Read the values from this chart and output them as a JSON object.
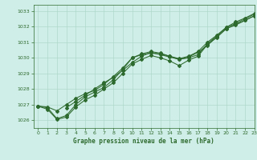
{
  "background_color": "#d0eee8",
  "grid_color": "#b0d8cc",
  "line_color": "#2d6a2d",
  "title": "Graphe pression niveau de la mer (hPa)",
  "xlim": [
    -0.5,
    23
  ],
  "ylim": [
    1025.5,
    1033.4
  ],
  "yticks": [
    1026,
    1027,
    1028,
    1029,
    1030,
    1031,
    1032,
    1033
  ],
  "xticks": [
    0,
    1,
    2,
    3,
    4,
    5,
    6,
    7,
    8,
    9,
    10,
    11,
    12,
    13,
    14,
    15,
    16,
    17,
    18,
    19,
    20,
    21,
    22,
    23
  ],
  "line1_x": [
    0,
    1,
    2,
    3,
    4,
    5,
    6,
    7,
    8,
    9,
    10,
    11,
    12,
    13,
    14,
    15,
    16,
    17,
    18,
    19,
    20,
    21,
    22,
    23
  ],
  "line1_y": [
    1026.9,
    1026.8,
    1026.1,
    1026.3,
    1027.0,
    1027.5,
    1027.8,
    1028.1,
    1028.6,
    1029.25,
    1030.0,
    1030.2,
    1030.3,
    1030.25,
    1030.1,
    1029.9,
    1030.0,
    1030.2,
    1030.9,
    1031.4,
    1031.95,
    1032.2,
    1032.5,
    1032.8
  ],
  "line2_x": [
    0,
    1,
    2,
    3,
    4,
    5,
    6,
    7,
    8,
    9,
    10,
    11,
    12,
    13,
    14,
    15,
    16,
    17,
    18,
    19,
    20,
    21,
    22,
    23
  ],
  "line2_y": [
    1026.9,
    1026.7,
    1026.05,
    1026.2,
    1026.85,
    1027.3,
    1027.6,
    1028.0,
    1028.4,
    1029.0,
    1029.6,
    1029.9,
    1030.15,
    1030.0,
    1029.8,
    1029.5,
    1029.85,
    1030.1,
    1030.85,
    1031.3,
    1031.88,
    1032.1,
    1032.4,
    1032.7
  ],
  "line3_x": [
    3,
    4,
    5,
    6,
    7,
    8,
    9,
    10,
    11,
    12,
    13,
    14,
    15,
    16,
    17,
    18,
    19,
    20,
    21,
    22,
    23
  ],
  "line3_y": [
    1026.8,
    1027.2,
    1027.6,
    1028.0,
    1028.4,
    1028.75,
    1029.2,
    1029.7,
    1030.1,
    1030.35,
    1030.2,
    1030.05,
    1029.9,
    1030.05,
    1030.35,
    1030.8,
    1031.35,
    1031.85,
    1032.15,
    1032.4,
    1032.7
  ],
  "line4_x": [
    0,
    1,
    2,
    3,
    4,
    5,
    6,
    7,
    8,
    9,
    10,
    11,
    12,
    13,
    14,
    15,
    16,
    17,
    18,
    19,
    20,
    21,
    22,
    23
  ],
  "line4_y": [
    1026.9,
    1026.85,
    1026.6,
    1027.0,
    1027.4,
    1027.7,
    1027.9,
    1028.3,
    1028.8,
    1029.35,
    1030.0,
    1030.25,
    1030.4,
    1030.3,
    1030.1,
    1029.95,
    1030.1,
    1030.4,
    1031.0,
    1031.45,
    1031.95,
    1032.3,
    1032.55,
    1032.85
  ]
}
